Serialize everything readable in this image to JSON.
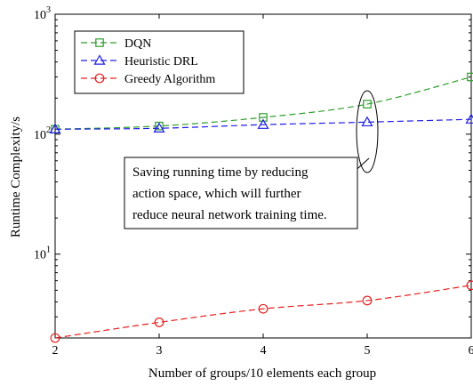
{
  "chart_data": {
    "type": "line",
    "xlabel": "Number of groups/10 elements each group",
    "ylabel": "Runtime Complexity/s",
    "x": [
      2,
      3,
      4,
      5,
      6
    ],
    "xlim": [
      2,
      6
    ],
    "ylim": [
      2,
      1000
    ],
    "yscale": "log",
    "x_ticks": [
      "2",
      "3",
      "4",
      "5",
      "6"
    ],
    "y_ticks": [
      {
        "value": 10,
        "base": "10",
        "exp": "1"
      },
      {
        "value": 100,
        "base": "10",
        "exp": "2"
      },
      {
        "value": 1000,
        "base": "10",
        "exp": "3"
      }
    ],
    "legend_position": "top-left",
    "series": [
      {
        "name": "DQN",
        "values": [
          110,
          117,
          138,
          178,
          300
        ],
        "color": "#2e9e2e",
        "marker": "square"
      },
      {
        "name": "Heuristic DRL",
        "values": [
          110,
          112,
          120,
          126,
          133
        ],
        "color": "#1f1fe6",
        "marker": "triangle"
      },
      {
        "name": "Greedy Algorithm",
        "values": [
          2.0,
          2.7,
          3.5,
          4.1,
          5.5
        ],
        "color": "#e62020",
        "marker": "circle"
      }
    ],
    "annotation": {
      "lines": [
        "Saving running time by reducing",
        "action space, which will further",
        "reduce neural network training time."
      ],
      "target_x": 5
    }
  }
}
